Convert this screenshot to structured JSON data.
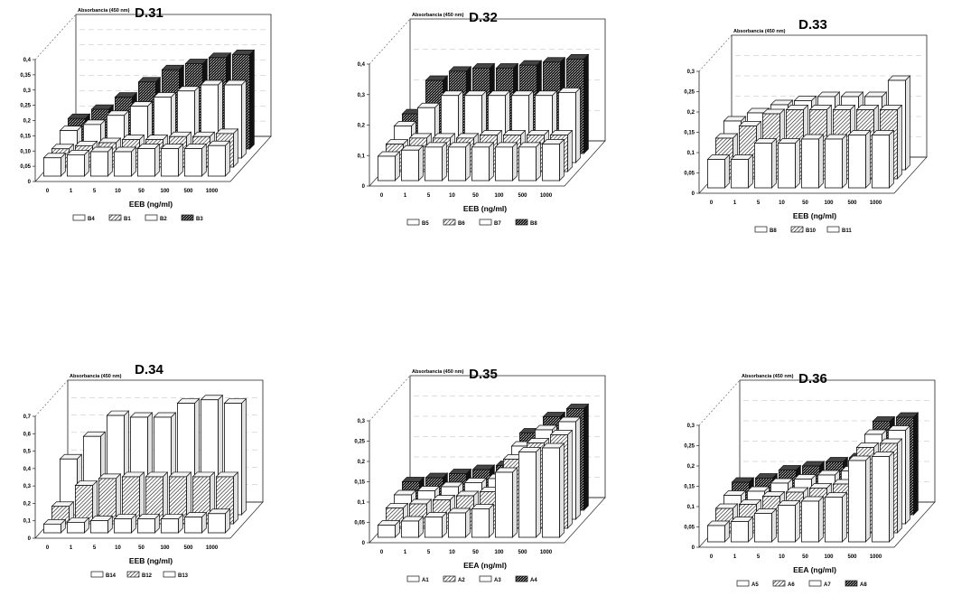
{
  "chart_data": [
    {
      "type": "bar",
      "title": "D.31",
      "ylabel": "Absorbancia (450 nm)",
      "xlabel": "EEB (ng/ml)",
      "categories": [
        "0",
        "1",
        "5",
        "10",
        "50",
        "100",
        "500",
        "1000"
      ],
      "yticks": [
        "0",
        "0,05",
        "0,10",
        "0,15",
        "0,2",
        "0,25",
        "0,3",
        "0,35",
        "0,4"
      ],
      "ylim": [
        0,
        0.4
      ],
      "series": [
        {
          "name": "B4",
          "pattern": "white",
          "values": [
            0.06,
            0.07,
            0.08,
            0.08,
            0.09,
            0.09,
            0.09,
            0.1
          ]
        },
        {
          "name": "B1",
          "pattern": "hatch",
          "values": [
            0.06,
            0.07,
            0.08,
            0.09,
            0.09,
            0.1,
            0.1,
            0.11
          ]
        },
        {
          "name": "B2",
          "pattern": "white",
          "values": [
            0.09,
            0.11,
            0.14,
            0.17,
            0.2,
            0.22,
            0.24,
            0.24
          ]
        },
        {
          "name": "B3",
          "pattern": "dark",
          "values": [
            0.1,
            0.13,
            0.17,
            0.22,
            0.26,
            0.28,
            0.3,
            0.31
          ]
        }
      ]
    },
    {
      "type": "bar",
      "title": "D.32",
      "ylabel": "Absorbancia (450 nm)",
      "xlabel": "EEB (ng/ml)",
      "categories": [
        "0",
        "1",
        "5",
        "10",
        "50",
        "100",
        "500",
        "1000"
      ],
      "yticks": [
        "0",
        "0,1",
        "0,2",
        "0,3",
        "0,4"
      ],
      "ylim": [
        0,
        0.4
      ],
      "series": [
        {
          "name": "B5",
          "pattern": "white",
          "values": [
            0.08,
            0.1,
            0.11,
            0.11,
            0.11,
            0.11,
            0.11,
            0.12
          ]
        },
        {
          "name": "B6",
          "pattern": "hatch",
          "values": [
            0.09,
            0.11,
            0.11,
            0.11,
            0.12,
            0.12,
            0.12,
            0.12
          ]
        },
        {
          "name": "B7",
          "pattern": "white",
          "values": [
            0.12,
            0.18,
            0.22,
            0.22,
            0.22,
            0.22,
            0.22,
            0.23
          ]
        },
        {
          "name": "B8",
          "pattern": "dark",
          "values": [
            0.13,
            0.24,
            0.27,
            0.28,
            0.28,
            0.29,
            0.3,
            0.31
          ]
        }
      ]
    },
    {
      "type": "bar",
      "title": "D.33",
      "ylabel": "Absorbancia (450 nm)",
      "xlabel": "EEB (ng/ml)",
      "categories": [
        "0",
        "1",
        "5",
        "10",
        "50",
        "100",
        "500",
        "1000"
      ],
      "yticks": [
        "0",
        "0,05",
        "0,1",
        "0,15",
        "0,2",
        "0,25",
        "0,3"
      ],
      "ylim": [
        0,
        0.3
      ],
      "series": [
        {
          "name": "B8",
          "pattern": "white",
          "values": [
            0.07,
            0.07,
            0.11,
            0.11,
            0.12,
            0.12,
            0.13,
            0.13
          ]
        },
        {
          "name": "B10",
          "pattern": "hatch",
          "values": [
            0.1,
            0.13,
            0.16,
            0.17,
            0.17,
            0.17,
            0.17,
            0.17
          ]
        },
        {
          "name": "B11",
          "pattern": "white",
          "values": [
            0.12,
            0.14,
            0.16,
            0.17,
            0.18,
            0.18,
            0.18,
            0.22
          ]
        }
      ]
    },
    {
      "type": "bar",
      "title": "D.34",
      "ylabel": "Absorbancia (450 nm)",
      "xlabel": "EEB (ng/ml)",
      "categories": [
        "0",
        "1",
        "5",
        "10",
        "50",
        "100",
        "500",
        "1000"
      ],
      "yticks": [
        "0",
        "0,1",
        "0,2",
        "0,3",
        "0,4",
        "0,5",
        "0,6",
        "0,7"
      ],
      "ylim": [
        0,
        0.7
      ],
      "series": [
        {
          "name": "B14",
          "pattern": "white",
          "values": [
            0.05,
            0.06,
            0.07,
            0.08,
            0.08,
            0.08,
            0.09,
            0.11
          ]
        },
        {
          "name": "B12",
          "pattern": "hatch",
          "values": [
            0.1,
            0.22,
            0.26,
            0.27,
            0.27,
            0.27,
            0.27,
            0.27
          ]
        },
        {
          "name": "B13",
          "pattern": "white",
          "values": [
            0.32,
            0.45,
            0.57,
            0.56,
            0.56,
            0.64,
            0.66,
            0.64
          ]
        }
      ]
    },
    {
      "type": "bar",
      "title": "D.35",
      "ylabel": "Absorbancia (450 nm)",
      "xlabel": "EEA (ng/ml)",
      "categories": [
        "0",
        "1",
        "5",
        "10",
        "50",
        "100",
        "500",
        "1000"
      ],
      "yticks": [
        "0",
        "0,05",
        "0,1",
        "0,15",
        "0,2",
        "0,25",
        "0,3"
      ],
      "ylim": [
        0,
        0.3
      ],
      "series": [
        {
          "name": "A1",
          "pattern": "white",
          "values": [
            0.03,
            0.04,
            0.05,
            0.06,
            0.07,
            0.16,
            0.21,
            0.22
          ]
        },
        {
          "name": "A2",
          "pattern": "hatch",
          "values": [
            0.05,
            0.06,
            0.07,
            0.08,
            0.09,
            0.17,
            0.21,
            0.23
          ]
        },
        {
          "name": "A3",
          "pattern": "white",
          "values": [
            0.06,
            0.07,
            0.08,
            0.09,
            0.1,
            0.18,
            0.22,
            0.24
          ]
        },
        {
          "name": "A4",
          "pattern": "dark",
          "values": [
            0.07,
            0.08,
            0.09,
            0.1,
            0.11,
            0.19,
            0.23,
            0.25
          ]
        }
      ]
    },
    {
      "type": "bar",
      "title": "D.36",
      "ylabel": "Absorbancia (450 nm)",
      "xlabel": "EEA (ng/ml)",
      "categories": [
        "0",
        "1",
        "5",
        "10",
        "50",
        "100",
        "500",
        "1000"
      ],
      "yticks": [
        "0",
        "0,05",
        "0,1",
        "0,15",
        "0,2",
        "0,25",
        "0,3"
      ],
      "ylim": [
        0,
        0.3
      ],
      "series": [
        {
          "name": "A5",
          "pattern": "white",
          "values": [
            0.04,
            0.05,
            0.07,
            0.09,
            0.1,
            0.11,
            0.2,
            0.21
          ]
        },
        {
          "name": "A6",
          "pattern": "hatch",
          "values": [
            0.06,
            0.07,
            0.09,
            0.1,
            0.11,
            0.12,
            0.21,
            0.22
          ]
        },
        {
          "name": "A7",
          "pattern": "white",
          "values": [
            0.07,
            0.08,
            0.1,
            0.11,
            0.12,
            0.13,
            0.22,
            0.23
          ]
        },
        {
          "name": "A8",
          "pattern": "dark",
          "values": [
            0.08,
            0.09,
            0.11,
            0.12,
            0.13,
            0.14,
            0.23,
            0.24
          ]
        }
      ]
    }
  ]
}
